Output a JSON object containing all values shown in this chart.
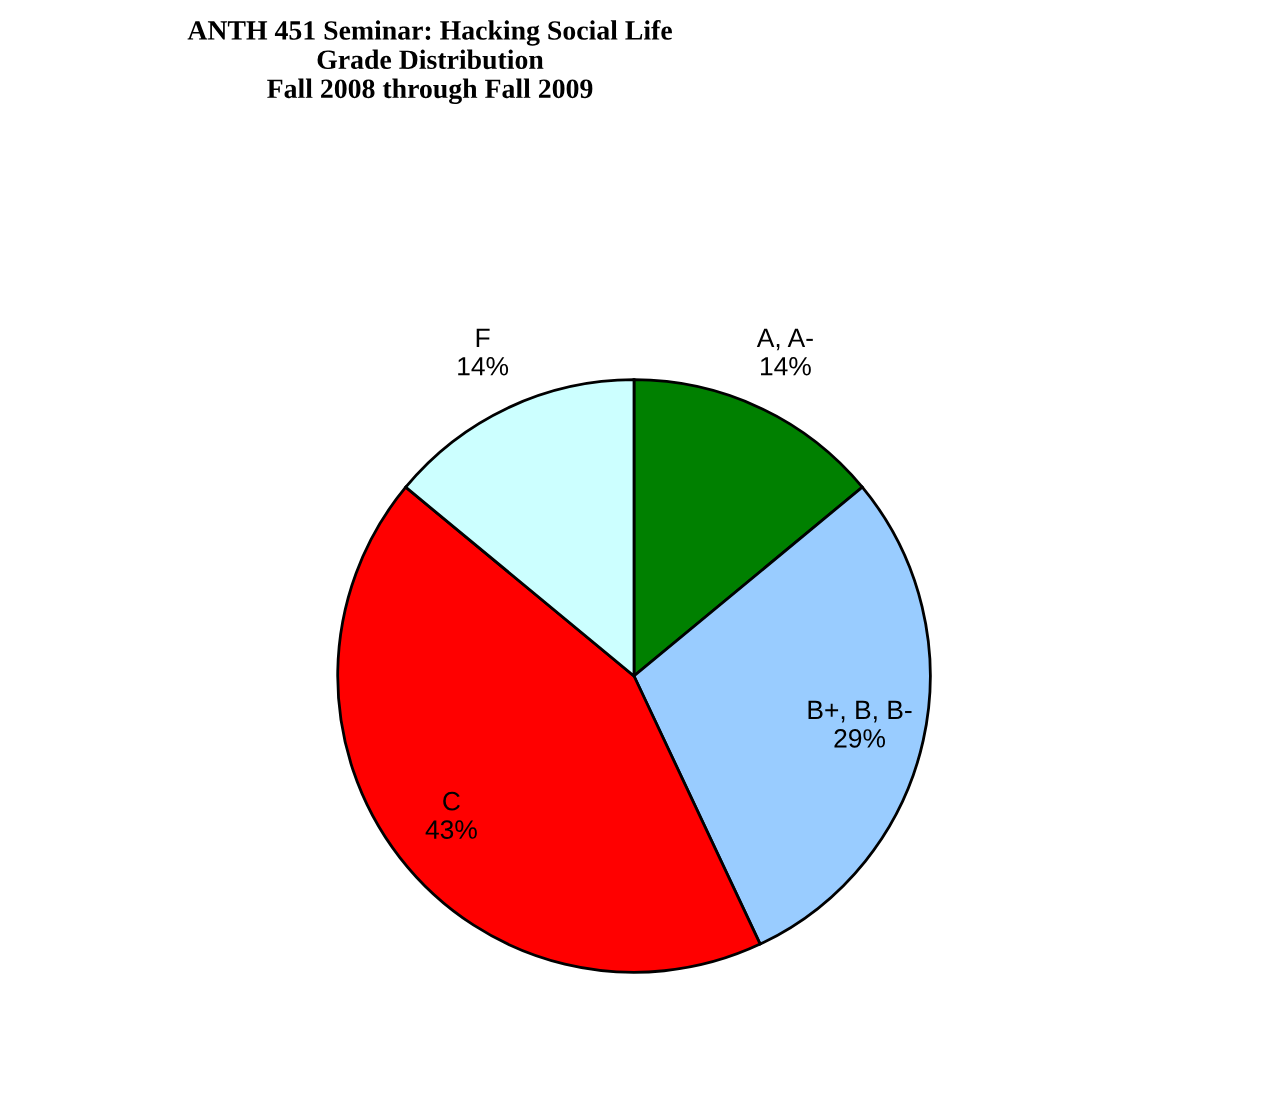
{
  "chart_data": {
    "type": "pie",
    "title": "ANTH 451 Seminar: Hacking Social Life\nGrade Distribution\nFall 2008 through Fall 2009",
    "categories": [
      "A, A-",
      "B+, B, B-",
      "C",
      "F"
    ],
    "values": [
      14,
      29,
      43,
      14
    ],
    "value_labels": [
      "14%",
      "29%",
      "43%",
      "14%"
    ],
    "colors": [
      "#008000",
      "#99ccff",
      "#ff0000",
      "#ccffff"
    ],
    "legend": false
  }
}
